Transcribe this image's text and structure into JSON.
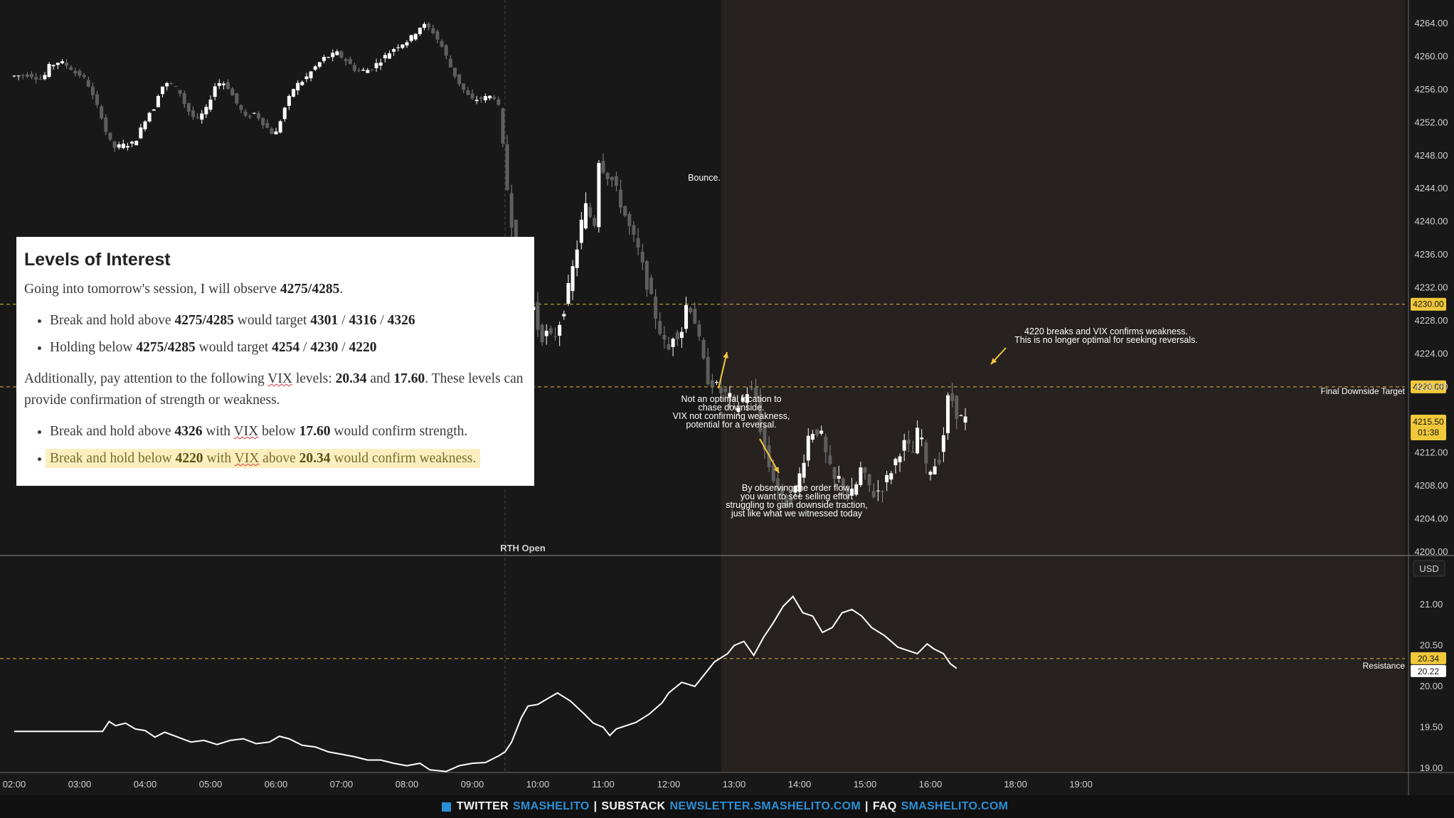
{
  "chart_data": [
    {
      "type": "candlestick",
      "symbol_currency": "USD",
      "price_axis_labels": [
        "4264.00",
        "4260.00",
        "4256.00",
        "4252.00",
        "4248.00",
        "4244.00",
        "4240.00",
        "4236.00",
        "4232.00",
        "4228.00",
        "4224.00",
        "4220.00",
        "4216.00",
        "4212.00",
        "4208.00",
        "4204.00",
        "4200.00"
      ],
      "ylim": [
        4200,
        4265
      ],
      "time_axis_labels": [
        "02:00",
        "03:00",
        "04:00",
        "05:00",
        "06:00",
        "07:00",
        "08:00",
        "09:00",
        "10:00",
        "11:00",
        "12:00",
        "13:00",
        "14:00",
        "15:00",
        "16:00",
        "18:00",
        "19:00"
      ],
      "price_path": [
        [
          2.0,
          4257.6
        ],
        [
          2.3,
          4257.8
        ],
        [
          2.5,
          4257.2
        ],
        [
          2.6,
          4258.8
        ],
        [
          2.75,
          4259.4
        ],
        [
          2.9,
          4258.8
        ],
        [
          3.0,
          4258.0
        ],
        [
          3.1,
          4257.7
        ],
        [
          3.2,
          4256.5
        ],
        [
          3.3,
          4254.5
        ],
        [
          3.4,
          4252.8
        ],
        [
          3.5,
          4250.0
        ],
        [
          3.6,
          4249.0
        ],
        [
          3.75,
          4249.3
        ],
        [
          3.9,
          4249.5
        ],
        [
          4.0,
          4251.2
        ],
        [
          4.1,
          4253.0
        ],
        [
          4.2,
          4253.8
        ],
        [
          4.3,
          4256.3
        ],
        [
          4.45,
          4256.8
        ],
        [
          4.6,
          4255.6
        ],
        [
          4.7,
          4253.7
        ],
        [
          4.85,
          4252.2
        ],
        [
          5.0,
          4253.6
        ],
        [
          5.15,
          4256.8
        ],
        [
          5.3,
          4256.8
        ],
        [
          5.45,
          4254.5
        ],
        [
          5.6,
          4252.6
        ],
        [
          5.75,
          4253.2
        ],
        [
          5.9,
          4251.6
        ],
        [
          6.05,
          4250.4
        ],
        [
          6.2,
          4253.8
        ],
        [
          6.35,
          4256.4
        ],
        [
          6.5,
          4257.2
        ],
        [
          6.65,
          4258.6
        ],
        [
          6.8,
          4259.8
        ],
        [
          7.0,
          4260.4
        ],
        [
          7.15,
          4259.4
        ],
        [
          7.3,
          4258.2
        ],
        [
          7.5,
          4258.4
        ],
        [
          7.7,
          4259.8
        ],
        [
          7.9,
          4261.2
        ],
        [
          8.1,
          4262.0
        ],
        [
          8.3,
          4263.9
        ],
        [
          8.45,
          4263.2
        ],
        [
          8.6,
          4261.2
        ],
        [
          8.75,
          4258.4
        ],
        [
          8.9,
          4256.3
        ],
        [
          9.05,
          4254.7
        ],
        [
          9.2,
          4254.9
        ],
        [
          9.35,
          4255.2
        ],
        [
          9.45,
          4255.0
        ],
        [
          9.52,
          4250.2
        ],
        [
          9.6,
          4244.0
        ],
        [
          9.7,
          4238.0
        ],
        [
          9.8,
          4234.6
        ],
        [
          9.9,
          4230.2
        ],
        [
          10.0,
          4229.6
        ],
        [
          10.1,
          4226.0
        ],
        [
          10.2,
          4226.4
        ],
        [
          10.3,
          4225.6
        ],
        [
          10.45,
          4229.0
        ],
        [
          10.55,
          4232.4
        ],
        [
          10.65,
          4236.2
        ],
        [
          10.75,
          4240.6
        ],
        [
          10.85,
          4243.0
        ],
        [
          10.9,
          4236.0
        ],
        [
          11.0,
          4247.6
        ],
        [
          11.1,
          4246.0
        ],
        [
          11.2,
          4245.0
        ],
        [
          11.3,
          4243.0
        ],
        [
          11.45,
          4239.6
        ],
        [
          11.6,
          4236.5
        ],
        [
          11.75,
          4232.0
        ],
        [
          11.85,
          4229.0
        ],
        [
          11.95,
          4226.4
        ],
        [
          12.05,
          4224.0
        ],
        [
          12.15,
          4226.8
        ],
        [
          12.25,
          4226.2
        ],
        [
          12.35,
          4230.6
        ],
        [
          12.45,
          4228.6
        ],
        [
          12.55,
          4224.8
        ],
        [
          12.65,
          4221.0
        ],
        [
          12.75,
          4220.5
        ],
        [
          12.85,
          4219.4
        ],
        [
          12.95,
          4219.0
        ],
        [
          13.0,
          4218.6
        ],
        [
          13.1,
          4217.2
        ],
        [
          13.2,
          4218.6
        ],
        [
          13.3,
          4219.8
        ],
        [
          13.4,
          4218.6
        ],
        [
          13.5,
          4213.2
        ],
        [
          13.6,
          4210.4
        ],
        [
          13.7,
          4208.2
        ],
        [
          13.8,
          4206.2
        ],
        [
          13.9,
          4206.0
        ],
        [
          14.0,
          4207.6
        ],
        [
          14.1,
          4210.2
        ],
        [
          14.2,
          4214.0
        ],
        [
          14.3,
          4215.0
        ],
        [
          14.4,
          4214.0
        ],
        [
          14.5,
          4210.6
        ],
        [
          14.6,
          4208.6
        ],
        [
          14.7,
          4209.0
        ],
        [
          14.8,
          4206.8
        ],
        [
          14.9,
          4207.2
        ],
        [
          15.0,
          4210.0
        ],
        [
          15.1,
          4208.4
        ],
        [
          15.2,
          4207.0
        ],
        [
          15.35,
          4208.0
        ],
        [
          15.5,
          4210.5
        ],
        [
          15.65,
          4213.2
        ],
        [
          15.8,
          4212.0
        ],
        [
          15.9,
          4215.6
        ],
        [
          16.0,
          4210.0
        ],
        [
          16.1,
          4210.2
        ],
        [
          16.2,
          4211.4
        ],
        [
          16.3,
          4215.8
        ],
        [
          16.35,
          4219.8
        ],
        [
          16.45,
          4217.0
        ],
        [
          16.55,
          4216.0
        ]
      ]
    },
    {
      "type": "line",
      "name": "VIX",
      "price_axis_labels": [
        "21.00",
        "20.50",
        "20.00",
        "19.50",
        "19.00"
      ],
      "ylim": [
        18.95,
        21.22
      ],
      "values": [
        [
          2.0,
          19.45
        ],
        [
          3.35,
          19.45
        ],
        [
          3.45,
          19.57
        ],
        [
          3.55,
          19.52
        ],
        [
          3.7,
          19.55
        ],
        [
          3.85,
          19.48
        ],
        [
          4.0,
          19.46
        ],
        [
          4.15,
          19.38
        ],
        [
          4.3,
          19.44
        ],
        [
          4.5,
          19.38
        ],
        [
          4.7,
          19.32
        ],
        [
          4.9,
          19.34
        ],
        [
          5.1,
          19.29
        ],
        [
          5.3,
          19.34
        ],
        [
          5.5,
          19.36
        ],
        [
          5.7,
          19.3
        ],
        [
          5.9,
          19.32
        ],
        [
          6.05,
          19.39
        ],
        [
          6.2,
          19.36
        ],
        [
          6.4,
          19.28
        ],
        [
          6.6,
          19.26
        ],
        [
          6.8,
          19.2
        ],
        [
          7.0,
          19.17
        ],
        [
          7.2,
          19.14
        ],
        [
          7.4,
          19.1
        ],
        [
          7.6,
          19.1
        ],
        [
          7.8,
          19.06
        ],
        [
          8.0,
          19.03
        ],
        [
          8.2,
          19.06
        ],
        [
          8.35,
          18.98
        ],
        [
          8.6,
          18.96
        ],
        [
          8.8,
          19.03
        ],
        [
          9.0,
          19.06
        ],
        [
          9.2,
          19.07
        ],
        [
          9.4,
          19.15
        ],
        [
          9.5,
          19.2
        ],
        [
          9.6,
          19.32
        ],
        [
          9.75,
          19.62
        ],
        [
          9.85,
          19.76
        ],
        [
          10.0,
          19.78
        ],
        [
          10.15,
          19.85
        ],
        [
          10.3,
          19.92
        ],
        [
          10.5,
          19.82
        ],
        [
          10.7,
          19.67
        ],
        [
          10.85,
          19.55
        ],
        [
          11.0,
          19.5
        ],
        [
          11.1,
          19.4
        ],
        [
          11.2,
          19.48
        ],
        [
          11.35,
          19.52
        ],
        [
          11.5,
          19.56
        ],
        [
          11.7,
          19.66
        ],
        [
          11.9,
          19.8
        ],
        [
          12.0,
          19.92
        ],
        [
          12.2,
          20.05
        ],
        [
          12.4,
          20.0
        ],
        [
          12.55,
          20.15
        ],
        [
          12.7,
          20.3
        ],
        [
          12.9,
          20.4
        ],
        [
          13.0,
          20.5
        ],
        [
          13.15,
          20.55
        ],
        [
          13.3,
          20.38
        ],
        [
          13.45,
          20.6
        ],
        [
          13.6,
          20.78
        ],
        [
          13.75,
          20.98
        ],
        [
          13.9,
          21.1
        ],
        [
          14.05,
          20.9
        ],
        [
          14.2,
          20.86
        ],
        [
          14.35,
          20.66
        ],
        [
          14.5,
          20.72
        ],
        [
          14.65,
          20.9
        ],
        [
          14.8,
          20.94
        ],
        [
          14.95,
          20.86
        ],
        [
          15.1,
          20.72
        ],
        [
          15.3,
          20.62
        ],
        [
          15.5,
          20.48
        ],
        [
          15.65,
          20.44
        ],
        [
          15.8,
          20.4
        ],
        [
          15.95,
          20.52
        ],
        [
          16.05,
          20.46
        ],
        [
          16.2,
          20.4
        ],
        [
          16.3,
          20.28
        ],
        [
          16.4,
          20.22
        ]
      ]
    }
  ],
  "levels": {
    "price_4230": "4230.00",
    "price_4220": "4220.00",
    "last_price": "4215.50",
    "countdown": "01:38",
    "vix_resistance": "20.34",
    "vix_last": "20.22",
    "currency": "USD",
    "final_target_label": "Final Downside Target",
    "resistance_label": "Resistance",
    "rth_label": "RTH Open"
  },
  "annotations": {
    "bounce": "Bounce.",
    "not_optimal": [
      "Not an optimal location to",
      "chase downside.",
      "VIX not confirming weakness,",
      "potential for a reversal."
    ],
    "order_flow": [
      "By observing the order flow,",
      "you want to see selling effort",
      "struggling to gain downside traction,",
      "just like what we witnessed today"
    ],
    "breaks": [
      "4220 breaks and VIX confirms weakness.",
      "This is no longer optimal for seeking reversals."
    ]
  },
  "panel": {
    "title": "Levels of Interest",
    "intro_pre": "Going into tomorrow's session, I will observe ",
    "intro_bold": "4275/4285",
    "intro_post": ".",
    "b1_pre": "Break and hold above ",
    "b1_lvl": "4275/4285",
    "b1_mid": " would target ",
    "b1_t1": "4301",
    "b1_t2": "4316",
    "b1_t3": "4326",
    "b2_pre": "Holding below ",
    "b2_lvl": "4275/4285",
    "b2_mid": " would target ",
    "b2_t1": "4254",
    "b2_t2": "4230",
    "b2_t3": "4220",
    "add_pre": "Additionally, pay attention to the following ",
    "add_vix": "VIX",
    "add_mid": " levels: ",
    "add_v1": "20.34",
    "add_and": " and ",
    "add_v2": "17.60",
    "add_post": ". These levels can provide confirmation of strength or weakness.",
    "c1_pre": "Break and hold above ",
    "c1_lvl": "4326",
    "c1_with": " with ",
    "c1_vix": "VIX",
    "c1_below": " below ",
    "c1_v": "17.60",
    "c1_post": " would confirm strength.",
    "c2_pre": "Break and hold below ",
    "c2_lvl": "4220",
    "c2_with": " with ",
    "c2_vix": "VIX",
    "c2_above": " above ",
    "c2_v": "20.34",
    "c2_post": " would confirm weakness."
  },
  "footer": {
    "twitter_label": "TWITTER",
    "twitter_handle": "SMASHELITO",
    "substack_label": "SUBSTACK",
    "substack_url": "NEWSLETTER.SMASHELITO.COM",
    "faq_label": "FAQ",
    "faq_url": "SMASHELITO.COM",
    "sep": "|"
  },
  "colors": {
    "background": "#181818",
    "session_shade": "#272120",
    "level_line": "#d8b838",
    "tag_bg": "#f1c83a",
    "candle_up": "#ffffff",
    "candle_down": "#5e5e5e",
    "annotation_arrow": "#f1c83a",
    "footer_accent": "#2b8fd6"
  }
}
